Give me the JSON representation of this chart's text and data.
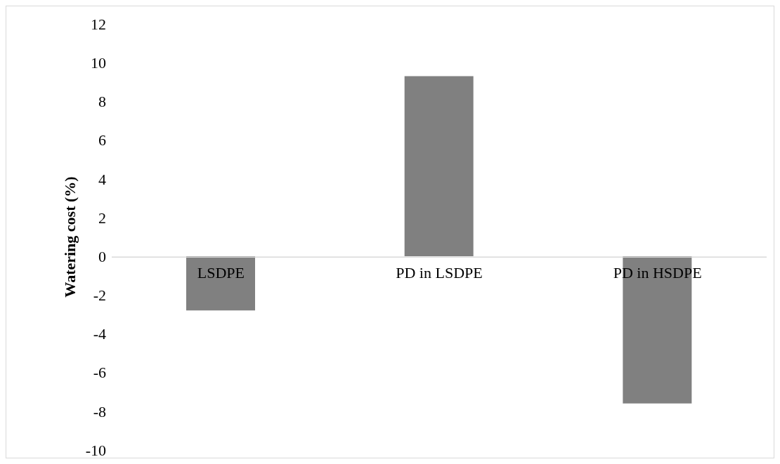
{
  "chart_data": {
    "type": "bar",
    "ylabel": "Watering cost (%)",
    "categories": [
      "LSDPE",
      "PD in LSDPE",
      "PD in HSDPE"
    ],
    "values": [
      -2.8,
      9.3,
      -7.6
    ],
    "color": "#808080",
    "ylim": [
      -10,
      12
    ],
    "yticks": [
      -10,
      -8,
      -6,
      -4,
      -2,
      0,
      2,
      4,
      6,
      8,
      10,
      12
    ]
  }
}
